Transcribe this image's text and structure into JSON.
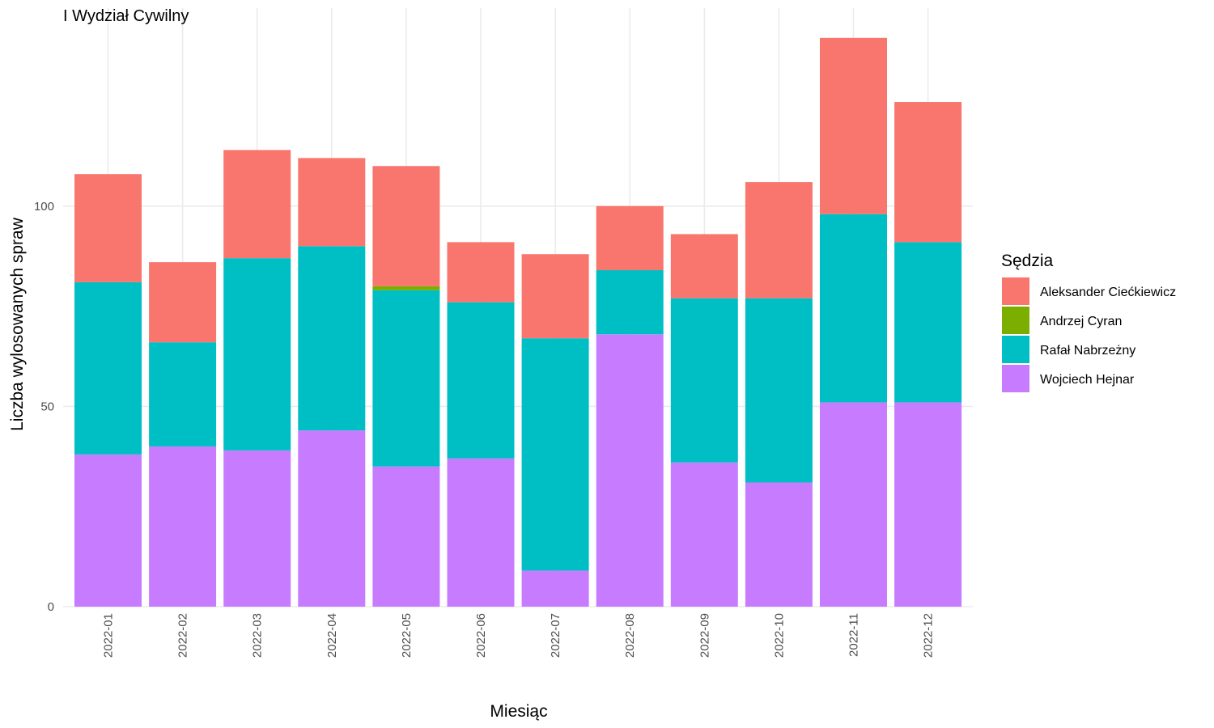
{
  "chart_data": {
    "type": "bar",
    "stacked": true,
    "title": "I Wydział Cywilny",
    "xlabel": "Miesiąc",
    "ylabel": "Liczba wylosowanych spraw",
    "ylim": [
      0,
      148
    ],
    "yticks": [
      0,
      50,
      100
    ],
    "grid": true,
    "legend_position": "right",
    "legend_title": "Sędzia",
    "categories": [
      "2022-01",
      "2022-02",
      "2022-03",
      "2022-04",
      "2022-05",
      "2022-06",
      "2022-07",
      "2022-08",
      "2022-09",
      "2022-10",
      "2022-11",
      "2022-12"
    ],
    "series": [
      {
        "name": "Wojciech Hejnar",
        "color": "#C77CFF",
        "values": [
          38,
          40,
          39,
          44,
          35,
          37,
          9,
          68,
          36,
          31,
          51,
          51
        ]
      },
      {
        "name": "Rafał Nabrzeżny",
        "color": "#00BFC4",
        "values": [
          43,
          26,
          48,
          46,
          44,
          39,
          58,
          16,
          41,
          46,
          47,
          40
        ]
      },
      {
        "name": "Andrzej Cyran",
        "color": "#7CAE00",
        "values": [
          0,
          0,
          0,
          0,
          1,
          0,
          0,
          0,
          0,
          0,
          0,
          0
        ]
      },
      {
        "name": "Aleksander Ciećkiewicz",
        "color": "#F8766D",
        "values": [
          27,
          20,
          27,
          22,
          30,
          15,
          21,
          16,
          16,
          29,
          44,
          35
        ]
      }
    ],
    "legend_order": [
      "Aleksander Ciećkiewicz",
      "Andrzej Cyran",
      "Rafał Nabrzeżny",
      "Wojciech Hejnar"
    ]
  }
}
